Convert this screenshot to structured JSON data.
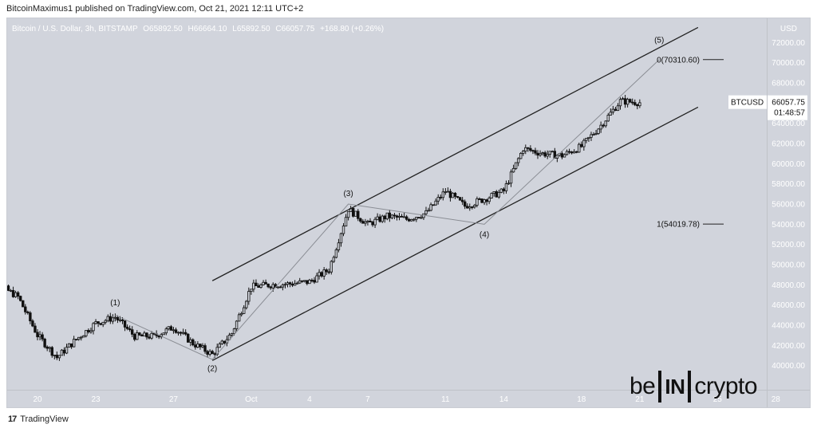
{
  "caption": "BitcoinMaximus1 published on TradingView.com, Oct 21, 2021 12:11 UTC+2",
  "symbol": {
    "name": "Bitcoin / U.S. Dollar, 3h, BITSTAMP",
    "open_label": "O",
    "open": "65892.50",
    "high_label": "H",
    "high": "66664.10",
    "low_label": "L",
    "low": "65892.50",
    "close_label": "C",
    "close": "66057.75",
    "change": "+168.80 (+0.26%)"
  },
  "axis_currency": "USD",
  "price_label": {
    "name": "BTCUSD",
    "value": "66057.75",
    "countdown": "01:48:57"
  },
  "footer": {
    "logo_mark": "17",
    "logo_text": "TradingView"
  },
  "brand": {
    "pre": "be",
    "mid": "IN",
    "post": "crypto"
  },
  "colors": {
    "background": "#d1d4dc",
    "candle": "#111111",
    "channel": "#222222",
    "wave_line": "#8a8d94",
    "axis_text": "#ffffff",
    "price_box": "#ffffff"
  },
  "chart_data": {
    "type": "candlestick",
    "x_tick_labels": [
      "20",
      "23",
      "27",
      "Oct",
      "4",
      "7",
      "11",
      "14",
      "18",
      "21",
      "25",
      "28"
    ],
    "y_ticks": [
      40000,
      42000,
      44000,
      46000,
      48000,
      50000,
      52000,
      54000,
      56000,
      58000,
      60000,
      62000,
      64000,
      66000,
      68000,
      70000,
      72000
    ],
    "y_tick_labels": [
      "40000.00",
      "42000.00",
      "44000.00",
      "46000.00",
      "48000.00",
      "50000.00",
      "52000.00",
      "54000.00",
      "56000.00",
      "58000.00",
      "60000.00",
      "62000.00",
      "64000.00",
      "66000.00",
      "68000.00",
      "70000.00",
      "72000.00"
    ],
    "ylim": [
      37600,
      74400
    ],
    "grid": false,
    "price_path": [
      [
        "Sep 17",
        48600
      ],
      [
        "Sep 18",
        48000
      ],
      [
        "Sep 19",
        46800
      ],
      [
        "Sep 20",
        43000
      ],
      [
        "Sep 21",
        40800
      ],
      [
        "Sep 22",
        42600
      ],
      [
        "Sep 23",
        44200
      ],
      [
        "Sep 24",
        44800
      ],
      [
        "Sep 25",
        42900
      ],
      [
        "Sep 26",
        42900
      ],
      [
        "Sep 27",
        43800
      ],
      [
        "Sep 28",
        42200
      ],
      [
        "Sep 29",
        41100
      ],
      [
        "Sep 30",
        43200
      ],
      [
        "Oct 1",
        47800
      ],
      [
        "Oct 2",
        48000
      ],
      [
        "Oct 3",
        48100
      ],
      [
        "Oct 4",
        48300
      ],
      [
        "Oct 5",
        49500
      ],
      [
        "Oct 6",
        55500
      ],
      [
        "Oct 7",
        54000
      ],
      [
        "Oct 8",
        54800
      ],
      [
        "Oct 9",
        54500
      ],
      [
        "Oct 10",
        55100
      ],
      [
        "Oct 11",
        57300
      ],
      [
        "Oct 12",
        55800
      ],
      [
        "Oct 13",
        56500
      ],
      [
        "Oct 14",
        57300
      ],
      [
        "Oct 15",
        61500
      ],
      [
        "Oct 16",
        61000
      ],
      [
        "Oct 17",
        60800
      ],
      [
        "Oct 18",
        61700
      ],
      [
        "Oct 19",
        63800
      ],
      [
        "Oct 20",
        66200
      ],
      [
        "Oct 21",
        66057.75
      ]
    ],
    "channel_upper": [
      [
        "Sep 29",
        48400
      ],
      [
        "Oct 24",
        73500
      ]
    ],
    "channel_lower": [
      [
        "Sep 29",
        40500
      ],
      [
        "Oct 24",
        65600
      ]
    ],
    "wave_path": [
      [
        "Sep 24",
        45000
      ],
      [
        "Sep 29",
        40600
      ],
      [
        "Oct 6",
        56000
      ],
      [
        "Oct 13",
        54000
      ],
      [
        "Oct 22",
        70300
      ]
    ],
    "wave_labels": [
      {
        "text": "(1)",
        "date": "Sep 24",
        "price": 45200,
        "place": "above"
      },
      {
        "text": "(2)",
        "date": "Sep 29",
        "price": 40700,
        "place": "below"
      },
      {
        "text": "(3)",
        "date": "Oct 6",
        "price": 56000,
        "place": "above"
      },
      {
        "text": "(4)",
        "date": "Oct 13",
        "price": 54000,
        "place": "below"
      },
      {
        "text": "(5)",
        "date": "Oct 22",
        "price": 71200,
        "place": "above"
      }
    ],
    "fib_levels": [
      {
        "label": "0(70310.60)",
        "price": 70310.6
      },
      {
        "label": "1(54019.78)",
        "price": 54019.78
      }
    ]
  }
}
